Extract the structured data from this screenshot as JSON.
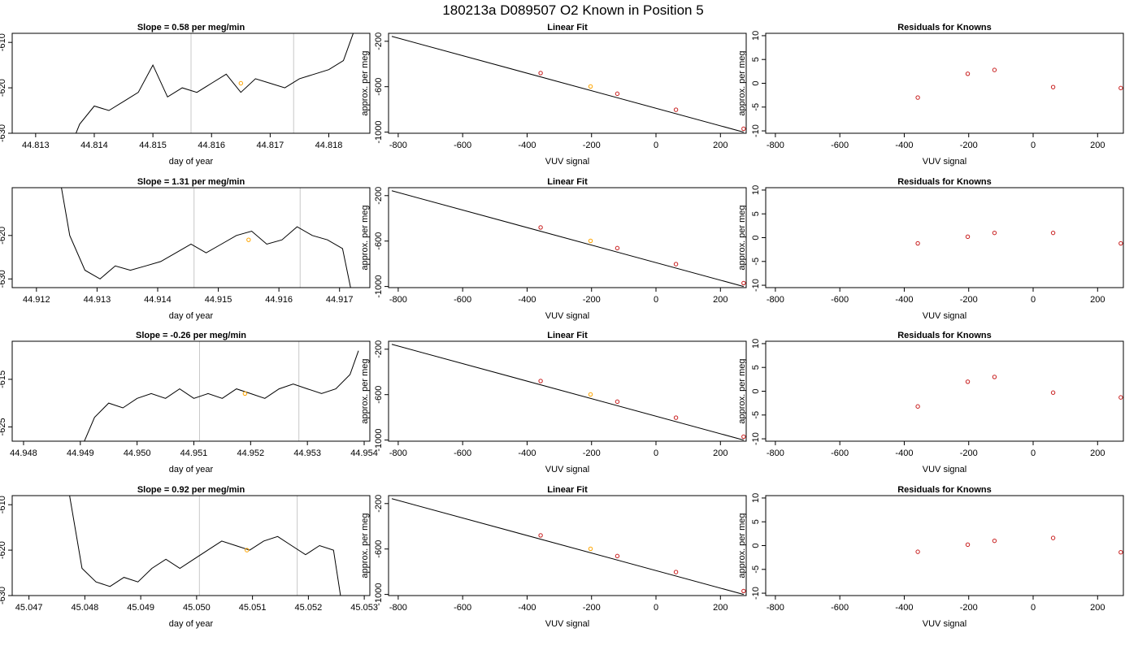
{
  "figure_title": "180213a      D089507    O2 Known in Position  5",
  "colors": {
    "line": "#000000",
    "grid_vertical": "#c8c8c8",
    "known_point": "#c81e1e",
    "highlight_point": "#ffa500",
    "frame": "#000000"
  },
  "chart_data": [
    {
      "type": "line",
      "row": 0,
      "title": "Slope =  0.58  per meg/min",
      "xlabel": "day of year",
      "ylabel": "approx. per meg",
      "xlim": [
        44.8126,
        44.8187
      ],
      "ylim": [
        -630,
        -608
      ],
      "xticks": [
        44.813,
        44.814,
        44.815,
        44.816,
        44.817,
        44.818
      ],
      "xtick_labels": [
        "44.813",
        "44.814",
        "44.815",
        "44.816",
        "44.817",
        "44.818"
      ],
      "yticks": [
        -610,
        -620,
        -630
      ],
      "ytick_labels": [
        "-610",
        "-620",
        "-630"
      ],
      "vlines": [
        44.81565,
        44.8174
      ],
      "highlight": {
        "x": 44.8165,
        "y": -619
      },
      "series": [
        {
          "x": [
            44.8135,
            44.81375,
            44.814,
            44.81425,
            44.8145,
            44.81475,
            44.815,
            44.81525,
            44.8155,
            44.81575,
            44.816,
            44.81625,
            44.8165,
            44.81675,
            44.817,
            44.81725,
            44.8175,
            44.81775,
            44.818,
            44.81825,
            44.8185
          ],
          "values": [
            -636,
            -628,
            -624,
            -625,
            -623,
            -621,
            -615,
            -622,
            -620,
            -621,
            -619,
            -617,
            -621,
            -618,
            -619,
            -620,
            -618,
            -617,
            -616,
            -614,
            -605
          ]
        }
      ]
    },
    {
      "type": "scatter",
      "row": 0,
      "title": "Linear Fit",
      "xlabel": "VUV signal",
      "ylabel": "approx. per meg",
      "xlim": [
        -830,
        280
      ],
      "ylim": [
        -1010,
        -130
      ],
      "xticks": [
        -800,
        -600,
        -400,
        -200,
        0,
        200
      ],
      "xtick_labels": [
        "-800",
        "-600",
        "-400",
        "-200",
        "0",
        "200"
      ],
      "yticks": [
        -200,
        -600,
        -1000
      ],
      "ytick_labels": [
        "-200",
        "-600",
        "-1000"
      ],
      "fit_line": {
        "x": [
          -820,
          272
        ],
        "y": [
          -157,
          -1000
        ]
      },
      "x": [
        -358,
        -203,
        -120,
        62,
        272
      ],
      "values": [
        -480,
        -598,
        -662,
        -803,
        -970
      ],
      "highlight_index": 1
    },
    {
      "type": "scatter",
      "row": 0,
      "title": "Residuals for Knowns",
      "xlabel": "VUV signal",
      "ylabel": "approx. per meg",
      "xlim": [
        -830,
        280
      ],
      "ylim": [
        -10.5,
        10.5
      ],
      "xticks": [
        -800,
        -600,
        -400,
        -200,
        0,
        200
      ],
      "xtick_labels": [
        "-800",
        "-600",
        "-400",
        "-200",
        "0",
        "200"
      ],
      "yticks": [
        10,
        5,
        0,
        -5,
        -10
      ],
      "ytick_labels": [
        "10",
        "5",
        "0",
        "-5",
        "-10"
      ],
      "x": [
        -358,
        -203,
        -120,
        62,
        272
      ],
      "values": [
        -3.0,
        2.0,
        2.8,
        -0.8,
        -1.0
      ]
    },
    {
      "type": "line",
      "row": 1,
      "title": "Slope =  1.31  per meg/min",
      "xlabel": "day of year",
      "ylabel": "approx. per meg",
      "xlim": [
        44.9116,
        44.9175
      ],
      "ylim": [
        -632,
        -609
      ],
      "xticks": [
        44.912,
        44.913,
        44.914,
        44.915,
        44.916,
        44.917
      ],
      "xtick_labels": [
        "44.912",
        "44.913",
        "44.914",
        "44.915",
        "44.916",
        "44.917"
      ],
      "yticks": [
        -620,
        -630
      ],
      "ytick_labels": [
        "-620",
        "-630"
      ],
      "vlines": [
        44.9146,
        44.91635
      ],
      "highlight": {
        "x": 44.9155,
        "y": -621
      },
      "series": [
        {
          "x": [
            44.9123,
            44.91255,
            44.9128,
            44.91305,
            44.9133,
            44.91355,
            44.9138,
            44.91405,
            44.9143,
            44.91455,
            44.9148,
            44.91505,
            44.9153,
            44.91555,
            44.9158,
            44.91605,
            44.9163,
            44.91655,
            44.9168,
            44.91705,
            44.9173
          ],
          "values": [
            -600,
            -620,
            -628,
            -630,
            -627,
            -628,
            -627,
            -626,
            -624,
            -622,
            -624,
            -622,
            -620,
            -619,
            -622,
            -621,
            -618,
            -620,
            -621,
            -623,
            -640
          ]
        }
      ]
    },
    {
      "type": "scatter",
      "row": 1,
      "title": "Linear Fit",
      "xlabel": "VUV signal",
      "ylabel": "approx. per meg",
      "xlim": [
        -830,
        280
      ],
      "ylim": [
        -1010,
        -130
      ],
      "xticks": [
        -800,
        -600,
        -400,
        -200,
        0,
        200
      ],
      "xtick_labels": [
        "-800",
        "-600",
        "-400",
        "-200",
        "0",
        "200"
      ],
      "yticks": [
        -200,
        -600,
        -1000
      ],
      "ytick_labels": [
        "-200",
        "-600",
        "-1000"
      ],
      "fit_line": {
        "x": [
          -820,
          272
        ],
        "y": [
          -157,
          -1000
        ]
      },
      "x": [
        -358,
        -203,
        -120,
        62,
        272
      ],
      "values": [
        -480,
        -598,
        -662,
        -803,
        -970
      ],
      "highlight_index": 1
    },
    {
      "type": "scatter",
      "row": 1,
      "title": "Residuals for Knowns",
      "xlabel": "VUV signal",
      "ylabel": "approx. per meg",
      "xlim": [
        -830,
        280
      ],
      "ylim": [
        -10.5,
        10.5
      ],
      "xticks": [
        -800,
        -600,
        -400,
        -200,
        0,
        200
      ],
      "xtick_labels": [
        "-800",
        "-600",
        "-400",
        "-200",
        "0",
        "200"
      ],
      "yticks": [
        10,
        5,
        0,
        -5,
        -10
      ],
      "ytick_labels": [
        "10",
        "5",
        "0",
        "-5",
        "-10"
      ],
      "x": [
        -358,
        -203,
        -120,
        62,
        272
      ],
      "values": [
        -1.2,
        0.2,
        1.0,
        1.0,
        -1.2
      ]
    },
    {
      "type": "line",
      "row": 2,
      "title": "Slope =  -0.26  per meg/min",
      "xlabel": "day of year",
      "ylabel": "approx. per meg",
      "xlim": [
        44.9478,
        44.9541
      ],
      "ylim": [
        -628,
        -607
      ],
      "xticks": [
        44.948,
        44.949,
        44.95,
        44.951,
        44.952,
        44.953,
        44.954
      ],
      "xtick_labels": [
        "44.948",
        "44.949",
        "44.950",
        "44.951",
        "44.952",
        "44.953",
        "44.954"
      ],
      "yticks": [
        -615,
        -625
      ],
      "ytick_labels": [
        "-615",
        "-625"
      ],
      "vlines": [
        44.9511,
        44.95285
      ],
      "highlight": {
        "x": 44.9519,
        "y": -618
      },
      "series": [
        {
          "x": [
            44.949,
            44.94925,
            44.9495,
            44.94975,
            44.95,
            44.95025,
            44.9505,
            44.95075,
            44.951,
            44.95125,
            44.9515,
            44.95175,
            44.952,
            44.95225,
            44.9525,
            44.95275,
            44.953,
            44.95325,
            44.9535,
            44.95375,
            44.9539
          ],
          "values": [
            -630,
            -623,
            -620,
            -621,
            -619,
            -618,
            -619,
            -617,
            -619,
            -618,
            -619,
            -617,
            -618,
            -619,
            -617,
            -616,
            -617,
            -618,
            -617,
            -614,
            -609
          ]
        }
      ]
    },
    {
      "type": "scatter",
      "row": 2,
      "title": "Linear Fit",
      "xlabel": "VUV signal",
      "ylabel": "approx. per meg",
      "xlim": [
        -830,
        280
      ],
      "ylim": [
        -1010,
        -130
      ],
      "xticks": [
        -800,
        -600,
        -400,
        -200,
        0,
        200
      ],
      "xtick_labels": [
        "-800",
        "-600",
        "-400",
        "-200",
        "0",
        "200"
      ],
      "yticks": [
        -200,
        -600,
        -1000
      ],
      "ytick_labels": [
        "-200",
        "-600",
        "-1000"
      ],
      "fit_line": {
        "x": [
          -820,
          272
        ],
        "y": [
          -157,
          -1000
        ]
      },
      "x": [
        -358,
        -203,
        -120,
        62,
        272
      ],
      "values": [
        -480,
        -598,
        -662,
        -803,
        -970
      ],
      "highlight_index": 1
    },
    {
      "type": "scatter",
      "row": 2,
      "title": "Residuals for Knowns",
      "xlabel": "VUV signal",
      "ylabel": "approx. per meg",
      "xlim": [
        -830,
        280
      ],
      "ylim": [
        -10.5,
        10.5
      ],
      "xticks": [
        -800,
        -600,
        -400,
        -200,
        0,
        200
      ],
      "xtick_labels": [
        "-800",
        "-600",
        "-400",
        "-200",
        "0",
        "200"
      ],
      "yticks": [
        10,
        5,
        0,
        -5,
        -10
      ],
      "ytick_labels": [
        "10",
        "5",
        "0",
        "-5",
        "-10"
      ],
      "x": [
        -358,
        -203,
        -120,
        62,
        272
      ],
      "values": [
        -3.2,
        2.0,
        3.0,
        -0.3,
        -1.3
      ]
    },
    {
      "type": "line",
      "row": 3,
      "title": "Slope =  0.92  per meg/min",
      "xlabel": "day of year",
      "ylabel": "approx. per meg",
      "xlim": [
        45.0467,
        45.0531
      ],
      "ylim": [
        -630,
        -608
      ],
      "xticks": [
        45.047,
        45.048,
        45.049,
        45.05,
        45.051,
        45.052,
        45.053
      ],
      "xtick_labels": [
        "45.047",
        "45.048",
        "45.049",
        "45.050",
        "45.051",
        "45.052",
        "45.053"
      ],
      "yticks": [
        -610,
        -620,
        -630
      ],
      "ytick_labels": [
        "-610",
        "-620",
        "-630"
      ],
      "vlines": [
        45.05005,
        45.0518
      ],
      "highlight": {
        "x": 45.0509,
        "y": -620
      },
      "series": [
        {
          "x": [
            45.0477,
            45.04795,
            45.0482,
            45.04845,
            45.0487,
            45.04895,
            45.0492,
            45.04945,
            45.0497,
            45.04995,
            45.0502,
            45.05045,
            45.0507,
            45.05095,
            45.0512,
            45.05145,
            45.0517,
            45.05195,
            45.0522,
            45.05245,
            45.0527
          ],
          "values": [
            -606,
            -624,
            -627,
            -628,
            -626,
            -627,
            -624,
            -622,
            -624,
            -622,
            -620,
            -618,
            -619,
            -620,
            -618,
            -617,
            -619,
            -621,
            -619,
            -620,
            -640
          ]
        }
      ]
    },
    {
      "type": "scatter",
      "row": 3,
      "title": "Linear Fit",
      "xlabel": "VUV signal",
      "ylabel": "approx. per meg",
      "xlim": [
        -830,
        280
      ],
      "ylim": [
        -1010,
        -130
      ],
      "xticks": [
        -800,
        -600,
        -400,
        -200,
        0,
        200
      ],
      "xtick_labels": [
        "-800",
        "-600",
        "-400",
        "-200",
        "0",
        "200"
      ],
      "yticks": [
        -200,
        -600,
        -1000
      ],
      "ytick_labels": [
        "-200",
        "-600",
        "-1000"
      ],
      "fit_line": {
        "x": [
          -820,
          272
        ],
        "y": [
          -157,
          -1000
        ]
      },
      "x": [
        -358,
        -203,
        -120,
        62,
        272
      ],
      "values": [
        -480,
        -598,
        -662,
        -803,
        -970
      ],
      "highlight_index": 1
    },
    {
      "type": "scatter",
      "row": 3,
      "title": "Residuals for Knowns",
      "xlabel": "VUV signal",
      "ylabel": "approx. per meg",
      "xlim": [
        -830,
        280
      ],
      "ylim": [
        -10.5,
        10.5
      ],
      "xticks": [
        -800,
        -600,
        -400,
        -200,
        0,
        200
      ],
      "xtick_labels": [
        "-800",
        "-600",
        "-400",
        "-200",
        "0",
        "200"
      ],
      "yticks": [
        10,
        5,
        0,
        -5,
        -10
      ],
      "ytick_labels": [
        "10",
        "5",
        "0",
        "-5",
        "-10"
      ],
      "x": [
        -358,
        -203,
        -120,
        62,
        272
      ],
      "values": [
        -1.3,
        0.2,
        1.0,
        1.6,
        -1.4
      ]
    }
  ]
}
